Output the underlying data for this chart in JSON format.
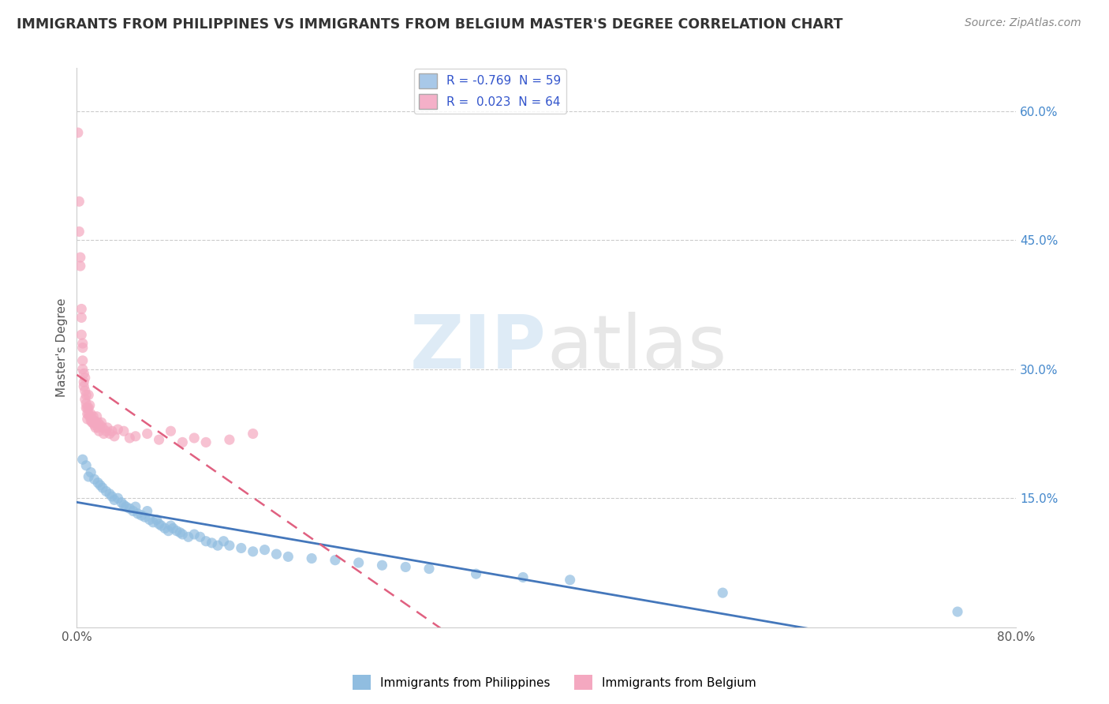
{
  "title": "IMMIGRANTS FROM PHILIPPINES VS IMMIGRANTS FROM BELGIUM MASTER'S DEGREE CORRELATION CHART",
  "source": "Source: ZipAtlas.com",
  "ylabel": "Master's Degree",
  "watermark": "ZIPatlas",
  "legend": [
    {
      "label": "R = -0.769  N = 59",
      "color": "#a8c8e8"
    },
    {
      "label": "R =  0.023  N = 64",
      "color": "#f4b0c8"
    }
  ],
  "xlim": [
    0.0,
    0.8
  ],
  "ylim": [
    0.0,
    0.65
  ],
  "yticks_right": [
    0.15,
    0.3,
    0.45,
    0.6
  ],
  "ytick_labels_right": [
    "15.0%",
    "30.0%",
    "45.0%",
    "60.0%"
  ],
  "color_philippines": "#90bde0",
  "color_belgium": "#f4a8c0",
  "line_color_philippines": "#4477bb",
  "line_color_belgium": "#e06080",
  "philippines_x": [
    0.005,
    0.008,
    0.01,
    0.012,
    0.015,
    0.018,
    0.02,
    0.022,
    0.025,
    0.028,
    0.03,
    0.032,
    0.035,
    0.038,
    0.04,
    0.042,
    0.045,
    0.048,
    0.05,
    0.052,
    0.055,
    0.058,
    0.06,
    0.062,
    0.065,
    0.068,
    0.07,
    0.072,
    0.075,
    0.078,
    0.08,
    0.082,
    0.085,
    0.088,
    0.09,
    0.095,
    0.1,
    0.105,
    0.11,
    0.115,
    0.12,
    0.125,
    0.13,
    0.14,
    0.15,
    0.16,
    0.17,
    0.18,
    0.2,
    0.22,
    0.24,
    0.26,
    0.28,
    0.3,
    0.34,
    0.38,
    0.42,
    0.55,
    0.75
  ],
  "philippines_y": [
    0.195,
    0.188,
    0.175,
    0.18,
    0.172,
    0.168,
    0.165,
    0.162,
    0.158,
    0.155,
    0.152,
    0.148,
    0.15,
    0.145,
    0.142,
    0.14,
    0.138,
    0.135,
    0.14,
    0.132,
    0.13,
    0.128,
    0.135,
    0.125,
    0.122,
    0.125,
    0.12,
    0.118,
    0.115,
    0.112,
    0.118,
    0.115,
    0.112,
    0.11,
    0.108,
    0.105,
    0.108,
    0.105,
    0.1,
    0.098,
    0.095,
    0.1,
    0.095,
    0.092,
    0.088,
    0.09,
    0.085,
    0.082,
    0.08,
    0.078,
    0.075,
    0.072,
    0.07,
    0.068,
    0.062,
    0.058,
    0.055,
    0.04,
    0.018
  ],
  "belgium_x": [
    0.001,
    0.002,
    0.002,
    0.003,
    0.003,
    0.004,
    0.004,
    0.004,
    0.005,
    0.005,
    0.005,
    0.005,
    0.006,
    0.006,
    0.006,
    0.007,
    0.007,
    0.007,
    0.008,
    0.008,
    0.008,
    0.009,
    0.009,
    0.009,
    0.01,
    0.01,
    0.01,
    0.011,
    0.011,
    0.012,
    0.012,
    0.013,
    0.013,
    0.014,
    0.014,
    0.015,
    0.015,
    0.016,
    0.016,
    0.017,
    0.018,
    0.018,
    0.019,
    0.02,
    0.021,
    0.022,
    0.023,
    0.025,
    0.026,
    0.028,
    0.03,
    0.032,
    0.035,
    0.04,
    0.045,
    0.05,
    0.06,
    0.07,
    0.08,
    0.09,
    0.1,
    0.11,
    0.13,
    0.15
  ],
  "belgium_y": [
    0.575,
    0.495,
    0.46,
    0.43,
    0.42,
    0.37,
    0.36,
    0.34,
    0.33,
    0.325,
    0.31,
    0.3,
    0.295,
    0.285,
    0.28,
    0.29,
    0.275,
    0.265,
    0.27,
    0.26,
    0.255,
    0.255,
    0.248,
    0.242,
    0.27,
    0.255,
    0.248,
    0.258,
    0.245,
    0.24,
    0.248,
    0.242,
    0.238,
    0.245,
    0.238,
    0.24,
    0.235,
    0.238,
    0.232,
    0.245,
    0.238,
    0.232,
    0.228,
    0.235,
    0.238,
    0.232,
    0.225,
    0.228,
    0.232,
    0.225,
    0.228,
    0.222,
    0.23,
    0.228,
    0.22,
    0.222,
    0.225,
    0.218,
    0.228,
    0.215,
    0.22,
    0.215,
    0.218,
    0.225
  ],
  "background_color": "#ffffff",
  "grid_color": "#cccccc"
}
